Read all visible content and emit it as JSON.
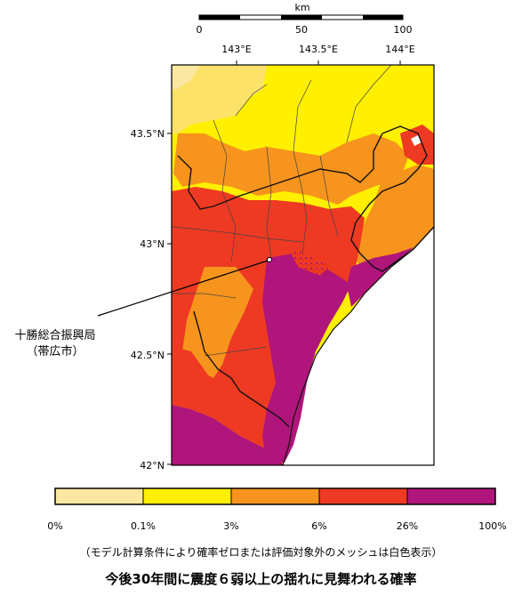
{
  "scale_bar": {
    "unit": "km",
    "ticks": [
      "0",
      "50",
      "100"
    ]
  },
  "map": {
    "lon_labels": [
      "143°E",
      "143.5°E",
      "144°E"
    ],
    "lat_labels": [
      "43.5°N",
      "43°N",
      "42.5°N",
      "42°N"
    ],
    "callout": {
      "line1": "十勝総合振興局",
      "line2": "（帯広市）"
    },
    "colors": {
      "pale": "#fbe7a1",
      "yellow": "#ffef00",
      "orange": "#f7941d",
      "red": "#ee3a22",
      "dark_red": "#d7261e",
      "purple": "#b0157b",
      "sea": "#ffffff"
    }
  },
  "legend": {
    "levels": [
      {
        "label": "0%",
        "color": "#fbe7a1"
      },
      {
        "label": "0.1%",
        "color": "#ffef00"
      },
      {
        "label": "3%",
        "color": "#f7941d"
      },
      {
        "label": "6%",
        "color": "#ee3a22"
      },
      {
        "label": "26%",
        "color": "#b0157b"
      },
      {
        "label": "100%",
        "color": ""
      }
    ]
  },
  "note": "（モデル計算条件により確率ゼロまたは評価対象外のメッシュは白色表示）",
  "title": "今後30年間に震度６弱以上の揺れに見舞われる確率"
}
